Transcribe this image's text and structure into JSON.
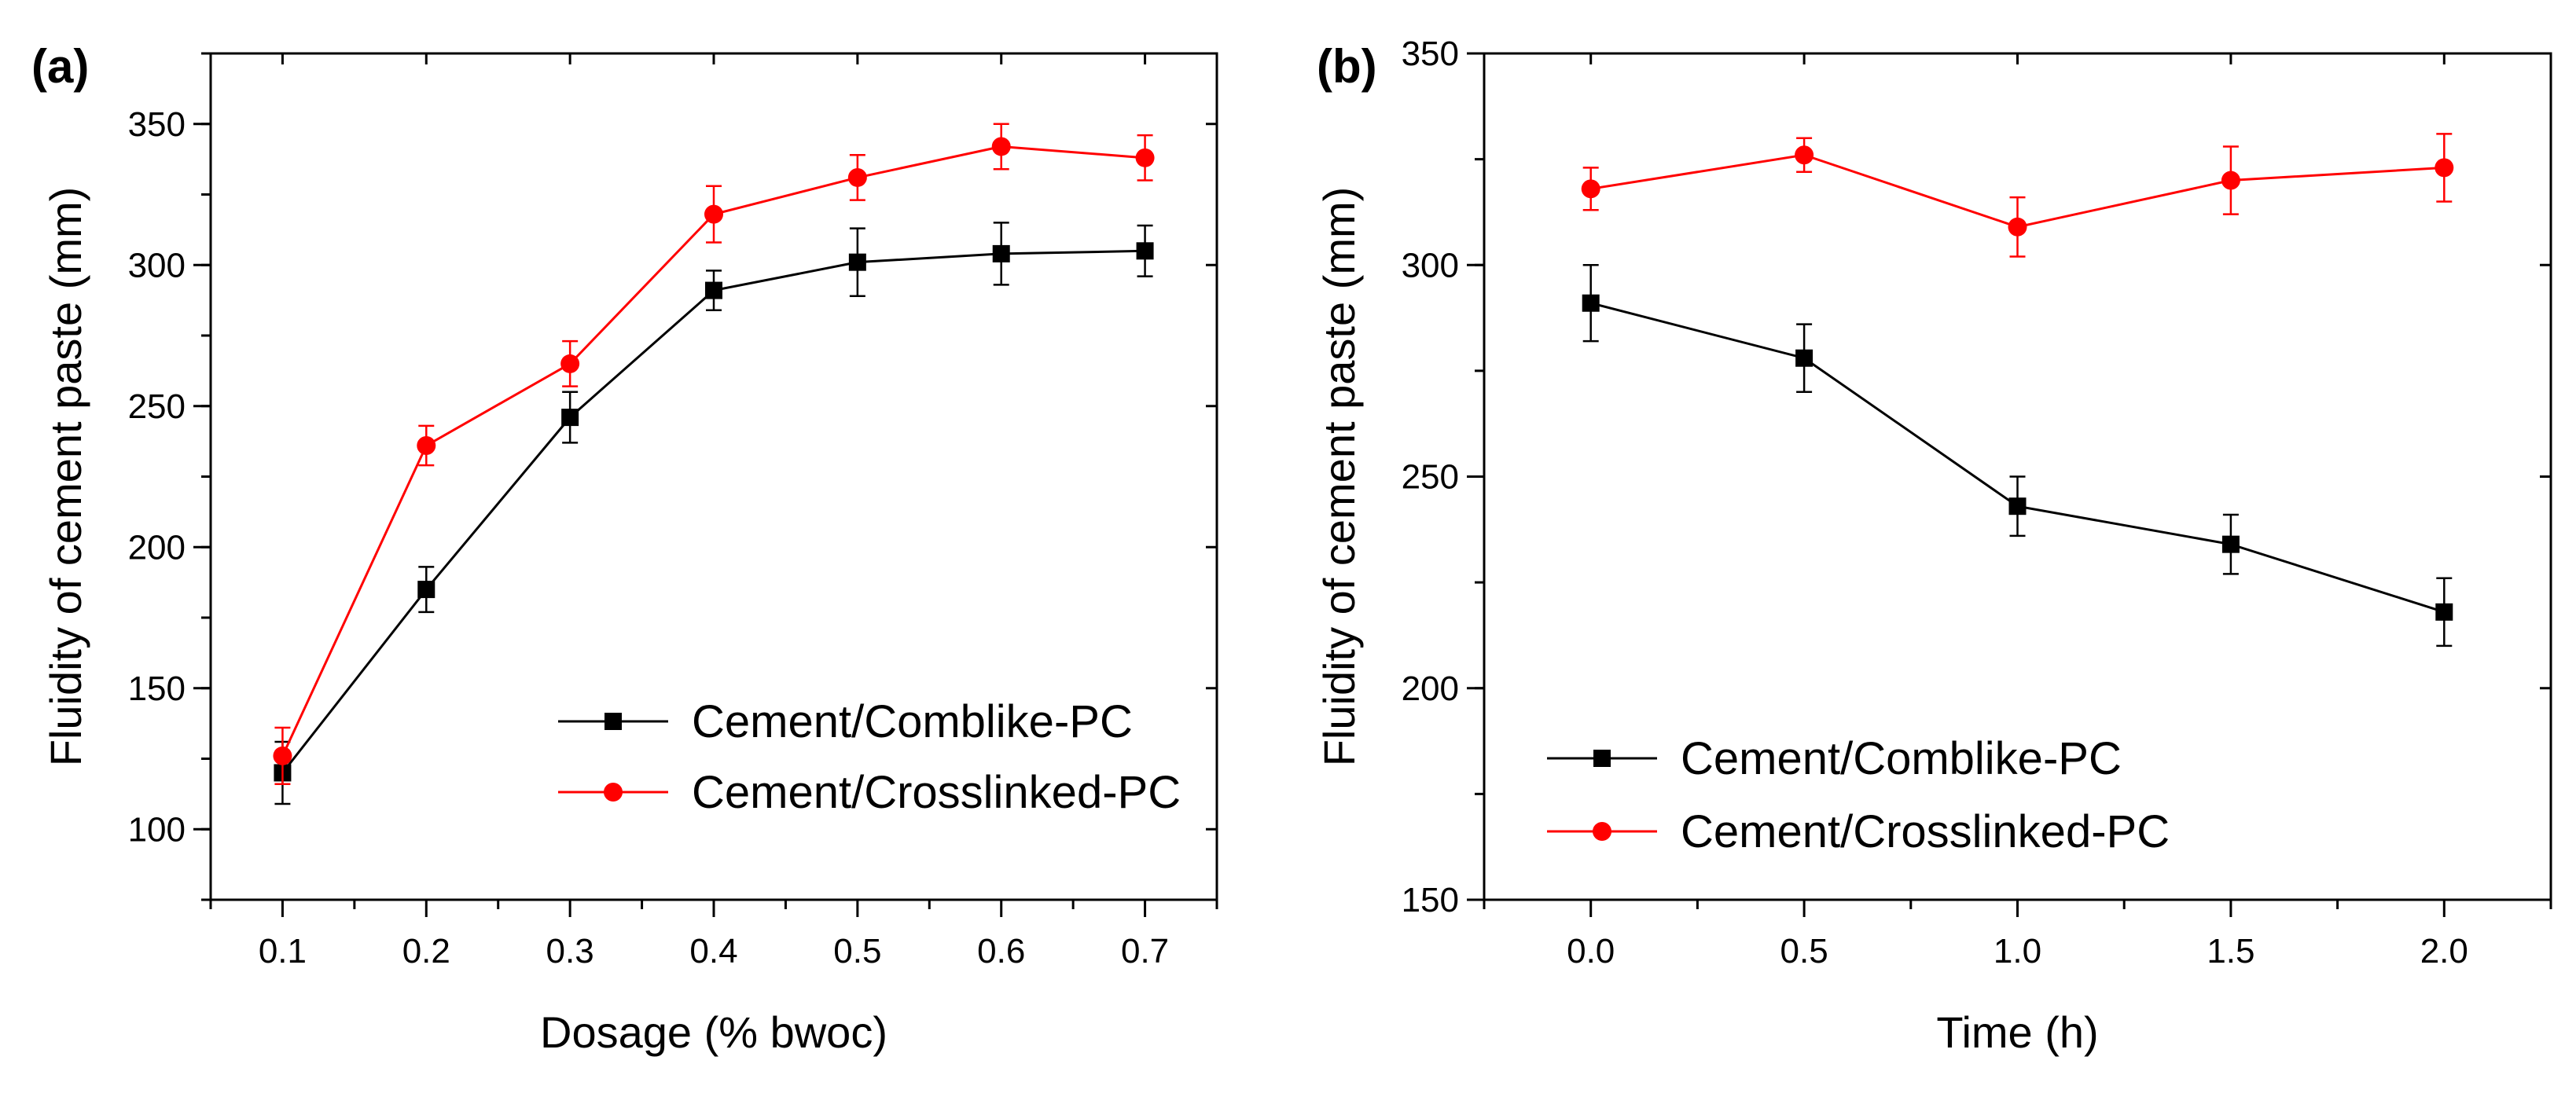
{
  "chart_data": [
    {
      "type": "line",
      "panel_label": "(a)",
      "title": "",
      "xlabel": "Dosage (% bwoc)",
      "ylabel": "Fluidity of cement paste (mm)",
      "xlim": [
        0.05,
        0.75
      ],
      "ylim": [
        75,
        375
      ],
      "xticks": [
        0.1,
        0.2,
        0.3,
        0.4,
        0.5,
        0.6,
        0.7
      ],
      "xtick_labels": [
        "0.1",
        "0.2",
        "0.3",
        "0.4",
        "0.5",
        "0.6",
        "0.7"
      ],
      "yticks": [
        100,
        150,
        200,
        250,
        300,
        350
      ],
      "ytick_labels": [
        "100",
        "150",
        "200",
        "250",
        "300",
        "350"
      ],
      "grid": false,
      "legend_position": "bottom-right",
      "x": [
        0.1,
        0.2,
        0.3,
        0.4,
        0.5,
        0.6,
        0.7
      ],
      "series": [
        {
          "name": "Cement/Comblike-PC",
          "color": "#000000",
          "marker": "square",
          "values": [
            120,
            185,
            246,
            291,
            301,
            304,
            305
          ],
          "errors": [
            11,
            8,
            9,
            7,
            12,
            11,
            9
          ]
        },
        {
          "name": "Cement/Crosslinked-PC",
          "color": "#ff0000",
          "marker": "circle",
          "values": [
            126,
            236,
            265,
            318,
            331,
            342,
            338
          ],
          "errors": [
            10,
            7,
            8,
            10,
            8,
            8,
            8
          ]
        }
      ]
    },
    {
      "type": "line",
      "panel_label": "(b)",
      "title": "",
      "xlabel": "Time (h)",
      "ylabel": "Fluidity of cement paste (mm)",
      "xlim": [
        -0.25,
        2.25
      ],
      "ylim": [
        150,
        350
      ],
      "xticks": [
        0.0,
        0.5,
        1.0,
        1.5,
        2.0
      ],
      "xtick_labels": [
        "0.0",
        "0.5",
        "1.0",
        "1.5",
        "2.0"
      ],
      "yticks": [
        150,
        200,
        250,
        300,
        350
      ],
      "ytick_labels": [
        "150",
        "200",
        "250",
        "300",
        "350"
      ],
      "grid": false,
      "legend_position": "bottom-left",
      "x": [
        0.0,
        0.5,
        1.0,
        1.5,
        2.0
      ],
      "series": [
        {
          "name": "Cement/Comblike-PC",
          "color": "#000000",
          "marker": "square",
          "values": [
            291,
            278,
            243,
            234,
            218
          ],
          "errors": [
            9,
            8,
            7,
            7,
            8
          ]
        },
        {
          "name": "Cement/Crosslinked-PC",
          "color": "#ff0000",
          "marker": "circle",
          "values": [
            318,
            326,
            309,
            320,
            323
          ],
          "errors": [
            5,
            4,
            7,
            8,
            8
          ]
        }
      ]
    }
  ]
}
